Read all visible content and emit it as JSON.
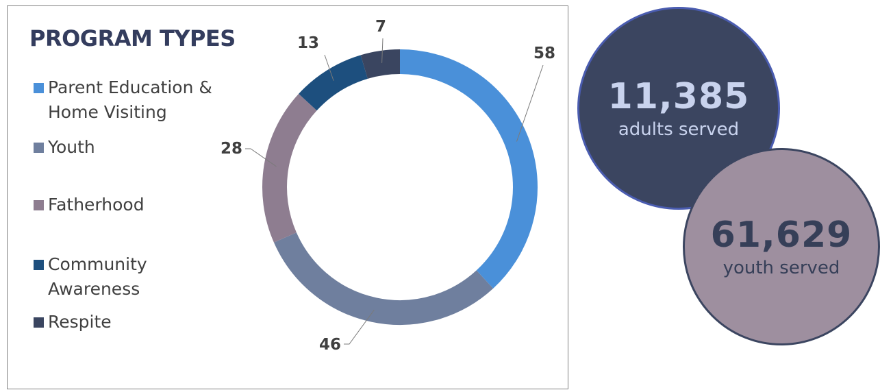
{
  "chart_data": {
    "type": "donut",
    "title": "PROGRAM TYPES",
    "categories": [
      "Parent Education & Home Visiting",
      "Youth",
      "Fatherhood",
      "Community Awareness",
      "Respite"
    ],
    "values": [
      58,
      46,
      28,
      13,
      7
    ],
    "colors": [
      "#4a90d9",
      "#6f7f9e",
      "#8e7d90",
      "#1d4f7e",
      "#3a4560"
    ],
    "legend_position": "left",
    "data_labels": [
      "58",
      "46",
      "28",
      "13",
      "7"
    ]
  },
  "legend_display": [
    {
      "label": "Parent Education &\nHome Visiting",
      "color": "#4a90d9"
    },
    {
      "label": "Youth",
      "color": "#6f7f9e"
    },
    {
      "label": "Fatherhood",
      "color": "#8e7d90"
    },
    {
      "label": "Community\nAwareness",
      "color": "#1d4f7e"
    },
    {
      "label": "Respite",
      "color": "#3a4560"
    }
  ],
  "stats": {
    "adults": {
      "value": "11,385",
      "caption": "adults served"
    },
    "youth": {
      "value": "61,629",
      "caption": "youth served"
    }
  }
}
